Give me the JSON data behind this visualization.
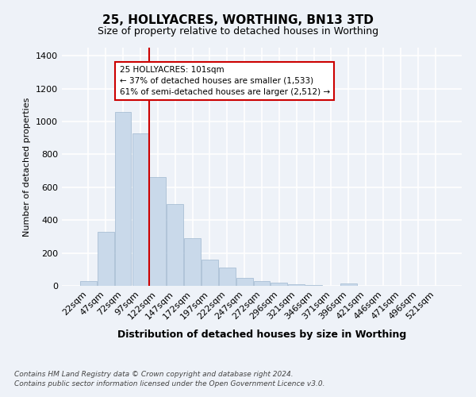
{
  "title": "25, HOLLYACRES, WORTHING, BN13 3TD",
  "subtitle": "Size of property relative to detached houses in Worthing",
  "xlabel": "Distribution of detached houses by size in Worthing",
  "ylabel": "Number of detached properties",
  "categories": [
    "22sqm",
    "47sqm",
    "72sqm",
    "97sqm",
    "122sqm",
    "147sqm",
    "172sqm",
    "197sqm",
    "222sqm",
    "247sqm",
    "272sqm",
    "296sqm",
    "321sqm",
    "346sqm",
    "371sqm",
    "396sqm",
    "421sqm",
    "446sqm",
    "471sqm",
    "496sqm",
    "521sqm"
  ],
  "values": [
    30,
    330,
    1060,
    930,
    660,
    500,
    290,
    160,
    110,
    50,
    30,
    20,
    10,
    5,
    2,
    15,
    2,
    0,
    0,
    0,
    0
  ],
  "bar_color": "#c9d9ea",
  "bar_edgecolor": "#a0b8d0",
  "vline_x": 3.5,
  "vline_color": "#cc0000",
  "annotation_text": "25 HOLLYACRES: 101sqm\n← 37% of detached houses are smaller (1,533)\n61% of semi-detached houses are larger (2,512) →",
  "annotation_box_color": "#ffffff",
  "annotation_box_edgecolor": "#cc0000",
  "ylim": [
    0,
    1450
  ],
  "yticks": [
    0,
    200,
    400,
    600,
    800,
    1000,
    1200,
    1400
  ],
  "footer": "Contains HM Land Registry data © Crown copyright and database right 2024.\nContains public sector information licensed under the Open Government Licence v3.0.",
  "background_color": "#eef2f8",
  "grid_color": "#ffffff"
}
